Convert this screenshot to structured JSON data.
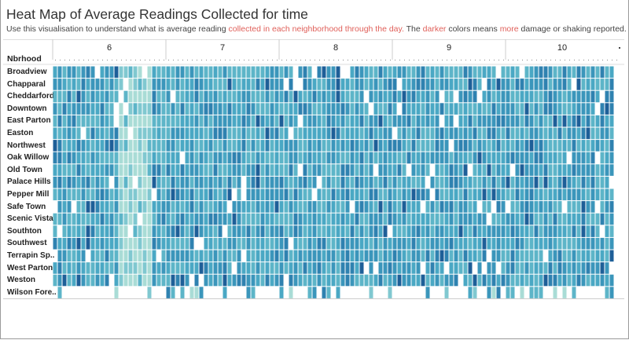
{
  "title": "Heat Map of Average Readings Collected for time",
  "subtitle": {
    "part1": "Use this visualisation to understand what is average reading ",
    "hl1": "collected in each neighborhood through the day.",
    "part2": " The ",
    "hl2": "darker",
    "part3": " colors means ",
    "hl3": "more",
    "part4": " damage or shaking reported."
  },
  "colors": {
    "highlight": "#e0605a",
    "low": "#a8d8d4",
    "mid": "#4aa8c4",
    "high": "#1e5f98"
  },
  "chart_data": {
    "type": "heatmap",
    "row_header": "Nbrhood",
    "columns": [
      "6",
      "7",
      "8",
      "9",
      "10"
    ],
    "rows": [
      "Broadview",
      "Chapparal",
      "Cheddarford",
      "Downtown",
      "East Parton",
      "Easton",
      "Northwest",
      "Oak Willow",
      "Old Town",
      "Palace Hills",
      "Pepper Mill",
      "Safe Town",
      "Scenic Vista",
      "Southton",
      "Southwest",
      "Terrapin Sp..",
      "West Parton",
      "Weston",
      "Wilson Fore.."
    ],
    "x_range": [
      5.5,
      10.5
    ],
    "grid": true,
    "legend": "none"
  }
}
